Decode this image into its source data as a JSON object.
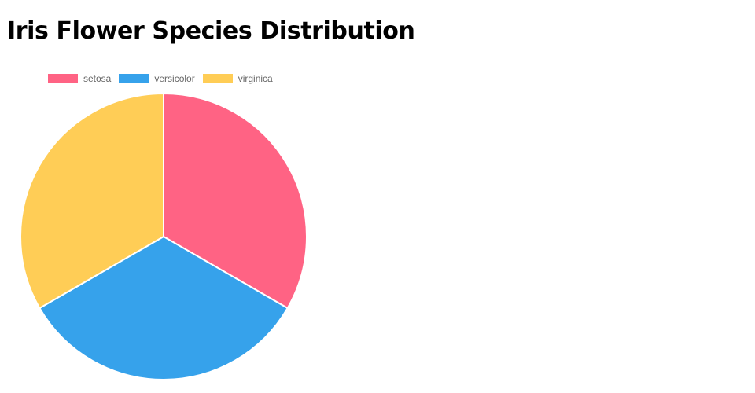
{
  "chart_data": {
    "type": "pie",
    "title": "Iris Flower Species Distribution",
    "categories": [
      "setosa",
      "versicolor",
      "virginica"
    ],
    "values": [
      50,
      50,
      50
    ],
    "colors": [
      "#ff6384",
      "#36a2eb",
      "#ffcd56"
    ],
    "legend": {
      "position": "top",
      "entries": [
        "setosa",
        "versicolor",
        "virginica"
      ]
    }
  }
}
